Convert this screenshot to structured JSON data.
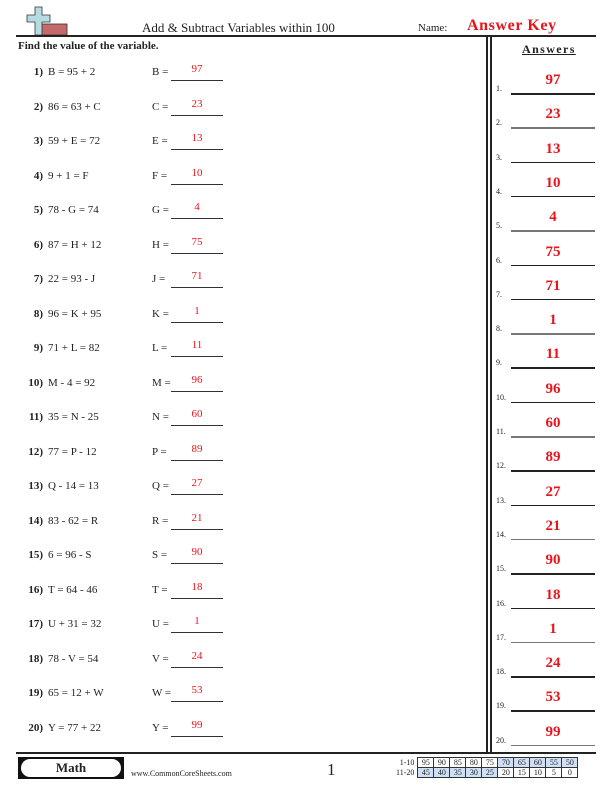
{
  "header": {
    "title": "Add & Subtract Variables within 100",
    "name_label": "Name:",
    "name_value": "Answer Key",
    "instructions": "Find the value of the variable.",
    "logo_icon": "plus-minus-icon"
  },
  "problems": [
    {
      "num": "1)",
      "equation": "B = 95 + 2",
      "var": "B =",
      "answer": "97"
    },
    {
      "num": "2)",
      "equation": "86 = 63 + C",
      "var": "C =",
      "answer": "23"
    },
    {
      "num": "3)",
      "equation": "59 + E = 72",
      "var": "E =",
      "answer": "13"
    },
    {
      "num": "4)",
      "equation": "9 + 1 = F",
      "var": "F =",
      "answer": "10"
    },
    {
      "num": "5)",
      "equation": "78 - G = 74",
      "var": "G =",
      "answer": "4"
    },
    {
      "num": "6)",
      "equation": "87 = H + 12",
      "var": "H =",
      "answer": "75"
    },
    {
      "num": "7)",
      "equation": "22 = 93 - J",
      "var": "J =",
      "answer": "71"
    },
    {
      "num": "8)",
      "equation": "96 = K + 95",
      "var": "K =",
      "answer": "1"
    },
    {
      "num": "9)",
      "equation": "71 + L = 82",
      "var": "L =",
      "answer": "11"
    },
    {
      "num": "10)",
      "equation": "M - 4 = 92",
      "var": "M =",
      "answer": "96"
    },
    {
      "num": "11)",
      "equation": "35 = N - 25",
      "var": "N =",
      "answer": "60"
    },
    {
      "num": "12)",
      "equation": "77 = P - 12",
      "var": "P =",
      "answer": "89"
    },
    {
      "num": "13)",
      "equation": "Q - 14 = 13",
      "var": "Q =",
      "answer": "27"
    },
    {
      "num": "14)",
      "equation": "83 - 62 = R",
      "var": "R =",
      "answer": "21"
    },
    {
      "num": "15)",
      "equation": "6 = 96 - S",
      "var": "S =",
      "answer": "90"
    },
    {
      "num": "16)",
      "equation": "T = 64 - 46",
      "var": "T =",
      "answer": "18"
    },
    {
      "num": "17)",
      "equation": "U + 31 = 32",
      "var": "U =",
      "answer": "1"
    },
    {
      "num": "18)",
      "equation": "78 - V = 54",
      "var": "V =",
      "answer": "24"
    },
    {
      "num": "19)",
      "equation": "65 = 12 + W",
      "var": "W =",
      "answer": "53"
    },
    {
      "num": "20)",
      "equation": "Y = 77 + 22",
      "var": "Y =",
      "answer": "99"
    }
  ],
  "answer_key": {
    "heading": "Answers",
    "items": [
      {
        "num": "1.",
        "answer": "97"
      },
      {
        "num": "2.",
        "answer": "23"
      },
      {
        "num": "3.",
        "answer": "13"
      },
      {
        "num": "4.",
        "answer": "10"
      },
      {
        "num": "5.",
        "answer": "4"
      },
      {
        "num": "6.",
        "answer": "75"
      },
      {
        "num": "7.",
        "answer": "71"
      },
      {
        "num": "8.",
        "answer": "1"
      },
      {
        "num": "9.",
        "answer": "11"
      },
      {
        "num": "10.",
        "answer": "96"
      },
      {
        "num": "11.",
        "answer": "60"
      },
      {
        "num": "12.",
        "answer": "89"
      },
      {
        "num": "13.",
        "answer": "27"
      },
      {
        "num": "14.",
        "answer": "21"
      },
      {
        "num": "15.",
        "answer": "90"
      },
      {
        "num": "16.",
        "answer": "18"
      },
      {
        "num": "17.",
        "answer": "1"
      },
      {
        "num": "18.",
        "answer": "24"
      },
      {
        "num": "19.",
        "answer": "53"
      },
      {
        "num": "20.",
        "answer": "99"
      }
    ]
  },
  "footer": {
    "subject": "Math",
    "site": "www.CommonCoreSheets.com",
    "page": "1",
    "score_table": {
      "rows": [
        {
          "label": "1-10",
          "values": [
            "95",
            "90",
            "85",
            "80",
            "75",
            "70",
            "65",
            "60",
            "55",
            "50"
          ]
        },
        {
          "label": "11-20",
          "values": [
            "45",
            "40",
            "35",
            "30",
            "25",
            "20",
            "15",
            "10",
            "5",
            "0"
          ]
        }
      ]
    }
  },
  "colors": {
    "answer_red": "#e8141c",
    "score_blue": "#cfe0f6"
  }
}
